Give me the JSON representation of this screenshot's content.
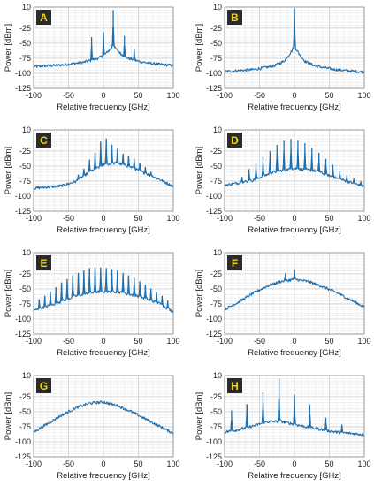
{
  "chart_data": [
    {
      "type": "line",
      "panel": "A",
      "title": "",
      "xlabel": "Relative frequency [GHz]",
      "ylabel": "Power  [dBm]",
      "xlim": [
        -100,
        100
      ],
      "ylim": [
        -125,
        10
      ],
      "xticks": [
        -100,
        -50,
        0,
        50,
        100
      ],
      "yticks": [
        10,
        -25,
        -50,
        -75,
        -100,
        -125
      ],
      "grid": true,
      "series_color": "#1f6fae",
      "floor": [
        [
          -100,
          -89
        ],
        [
          -60,
          -86
        ],
        [
          -30,
          -82
        ],
        [
          -10,
          -76
        ],
        [
          0,
          -71
        ],
        [
          8,
          -62
        ],
        [
          14,
          -55
        ],
        [
          20,
          -62
        ],
        [
          30,
          -73
        ],
        [
          50,
          -80
        ],
        [
          70,
          -84
        ],
        [
          100,
          -87
        ]
      ],
      "peaks": [
        [
          -17,
          -40
        ],
        [
          0,
          -32
        ],
        [
          14,
          5
        ],
        [
          30,
          -38
        ],
        [
          44,
          -60
        ]
      ]
    },
    {
      "type": "line",
      "panel": "B",
      "title": "",
      "xlabel": "Relative frequency [GHz]",
      "ylabel": "Power  [dBm]",
      "xlim": [
        -100,
        100
      ],
      "ylim": [
        -125,
        10
      ],
      "xticks": [
        -100,
        -50,
        0,
        50,
        100
      ],
      "yticks": [
        10,
        -25,
        -50,
        -75,
        -100,
        -125
      ],
      "grid": true,
      "series_color": "#1f6fae",
      "floor": [
        [
          -100,
          -97
        ],
        [
          -60,
          -94
        ],
        [
          -30,
          -88
        ],
        [
          -15,
          -80
        ],
        [
          -5,
          -65
        ],
        [
          0,
          -55
        ],
        [
          5,
          -65
        ],
        [
          15,
          -80
        ],
        [
          30,
          -88
        ],
        [
          60,
          -94
        ],
        [
          100,
          -98
        ]
      ],
      "peaks": [
        [
          0,
          8
        ]
      ]
    },
    {
      "type": "line",
      "panel": "C",
      "title": "",
      "xlabel": "Relative frequency [GHz]",
      "ylabel": "Power  [dBm]",
      "xlim": [
        -100,
        100
      ],
      "ylim": [
        -125,
        10
      ],
      "xticks": [
        -100,
        -50,
        0,
        50,
        100
      ],
      "yticks": [
        10,
        -25,
        -50,
        -75,
        -100,
        -125
      ],
      "grid": true,
      "series_color": "#1f6fae",
      "floor": [
        [
          -100,
          -87
        ],
        [
          -60,
          -83
        ],
        [
          -40,
          -76
        ],
        [
          -20,
          -60
        ],
        [
          0,
          -48
        ],
        [
          20,
          -45
        ],
        [
          40,
          -52
        ],
        [
          60,
          -62
        ],
        [
          80,
          -72
        ],
        [
          100,
          -84
        ]
      ],
      "peaks": [
        [
          -36,
          -65
        ],
        [
          -28,
          -55
        ],
        [
          -20,
          -40
        ],
        [
          -12,
          -28
        ],
        [
          -4,
          -10
        ],
        [
          4,
          -5
        ],
        [
          12,
          -15
        ],
        [
          20,
          -22
        ],
        [
          28,
          -30
        ],
        [
          36,
          -33
        ],
        [
          44,
          -38
        ],
        [
          52,
          -45
        ],
        [
          60,
          -52
        ],
        [
          68,
          -60
        ]
      ]
    },
    {
      "type": "line",
      "panel": "D",
      "title": "",
      "xlabel": "Relative frequency [GHz]",
      "ylabel": "Power  [dBm]",
      "xlim": [
        -100,
        100
      ],
      "ylim": [
        -125,
        10
      ],
      "xticks": [
        -100,
        -50,
        0,
        50,
        100
      ],
      "yticks": [
        10,
        -25,
        -50,
        -75,
        -100,
        -125
      ],
      "grid": true,
      "series_color": "#1f6fae",
      "floor": [
        [
          -100,
          -82
        ],
        [
          -60,
          -74
        ],
        [
          -30,
          -60
        ],
        [
          0,
          -54
        ],
        [
          30,
          -58
        ],
        [
          60,
          -70
        ],
        [
          100,
          -84
        ]
      ],
      "peaks": [
        [
          -75,
          -68
        ],
        [
          -65,
          -55
        ],
        [
          -55,
          -45
        ],
        [
          -45,
          -35
        ],
        [
          -35,
          -25
        ],
        [
          -25,
          -15
        ],
        [
          -15,
          -8
        ],
        [
          -5,
          -5
        ],
        [
          5,
          -8
        ],
        [
          15,
          -12
        ],
        [
          25,
          -20
        ],
        [
          35,
          -28
        ],
        [
          45,
          -38
        ],
        [
          55,
          -48
        ],
        [
          65,
          -58
        ],
        [
          75,
          -65
        ],
        [
          85,
          -70
        ],
        [
          95,
          -75
        ]
      ]
    },
    {
      "type": "line",
      "panel": "E",
      "title": "",
      "xlabel": "Relative frequency [GHz]",
      "ylabel": "Power  [dBm]",
      "xlim": [
        -100,
        100
      ],
      "ylim": [
        -125,
        10
      ],
      "xticks": [
        -100,
        -50,
        0,
        50,
        100
      ],
      "yticks": [
        10,
        -25,
        -50,
        -75,
        -100,
        -125
      ],
      "grid": true,
      "series_color": "#1f6fae",
      "floor": [
        [
          -100,
          -86
        ],
        [
          -70,
          -75
        ],
        [
          -40,
          -62
        ],
        [
          -10,
          -55
        ],
        [
          20,
          -55
        ],
        [
          50,
          -62
        ],
        [
          80,
          -74
        ],
        [
          100,
          -88
        ]
      ],
      "peaks": [
        [
          -92,
          -68
        ],
        [
          -84,
          -62
        ],
        [
          -76,
          -55
        ],
        [
          -68,
          -48
        ],
        [
          -60,
          -40
        ],
        [
          -52,
          -34
        ],
        [
          -44,
          -28
        ],
        [
          -36,
          -24
        ],
        [
          -28,
          -20
        ],
        [
          -20,
          -16
        ],
        [
          -12,
          -14
        ],
        [
          -4,
          -15
        ],
        [
          4,
          -16
        ],
        [
          12,
          -18
        ],
        [
          20,
          -20
        ],
        [
          28,
          -24
        ],
        [
          36,
          -28
        ],
        [
          44,
          -32
        ],
        [
          52,
          -38
        ],
        [
          60,
          -44
        ],
        [
          68,
          -50
        ],
        [
          76,
          -56
        ],
        [
          84,
          -62
        ],
        [
          92,
          -70
        ]
      ]
    },
    {
      "type": "line",
      "panel": "F",
      "title": "",
      "xlabel": "Relative frequency [GHz]",
      "ylabel": "Power  [dBm]",
      "xlim": [
        -100,
        100
      ],
      "ylim": [
        -125,
        10
      ],
      "xticks": [
        -100,
        -50,
        0,
        50,
        100
      ],
      "yticks": [
        10,
        -25,
        -50,
        -75,
        -100,
        -125
      ],
      "grid": true,
      "series_color": "#1f6fae",
      "floor": [
        [
          -100,
          -84
        ],
        [
          -80,
          -72
        ],
        [
          -60,
          -58
        ],
        [
          -40,
          -46
        ],
        [
          -20,
          -38
        ],
        [
          0,
          -34
        ],
        [
          20,
          -38
        ],
        [
          40,
          -46
        ],
        [
          60,
          -56
        ],
        [
          80,
          -68
        ],
        [
          100,
          -80
        ]
      ],
      "peaks": [
        [
          -13,
          -24
        ],
        [
          0,
          -18
        ]
      ]
    },
    {
      "type": "line",
      "panel": "G",
      "title": "",
      "xlabel": "Relative frequency [GHz]",
      "ylabel": "Power  [dBm]",
      "xlim": [
        -100,
        100
      ],
      "ylim": [
        -125,
        10
      ],
      "xticks": [
        -100,
        -50,
        0,
        50,
        100
      ],
      "yticks": [
        10,
        -25,
        -50,
        -75,
        -100,
        -125
      ],
      "grid": true,
      "series_color": "#1f6fae",
      "floor": [
        [
          -100,
          -84
        ],
        [
          -80,
          -70
        ],
        [
          -60,
          -56
        ],
        [
          -40,
          -44
        ],
        [
          -20,
          -36
        ],
        [
          0,
          -34
        ],
        [
          20,
          -40
        ],
        [
          40,
          -50
        ],
        [
          60,
          -62
        ],
        [
          80,
          -74
        ],
        [
          100,
          -86
        ]
      ],
      "peaks": []
    },
    {
      "type": "line",
      "panel": "H",
      "title": "",
      "xlabel": "Relative frequency [GHz]",
      "ylabel": "Power  [dBm]",
      "xlim": [
        -100,
        100
      ],
      "ylim": [
        -125,
        10
      ],
      "xticks": [
        -100,
        -50,
        0,
        50,
        100
      ],
      "yticks": [
        10,
        -25,
        -50,
        -75,
        -100,
        -125
      ],
      "grid": true,
      "series_color": "#1f6fae",
      "floor": [
        [
          -100,
          -84
        ],
        [
          -80,
          -80
        ],
        [
          -60,
          -74
        ],
        [
          -40,
          -67
        ],
        [
          -20,
          -66
        ],
        [
          0,
          -71
        ],
        [
          20,
          -76
        ],
        [
          40,
          -80
        ],
        [
          60,
          -84
        ],
        [
          80,
          -86
        ],
        [
          100,
          -88
        ]
      ],
      "peaks": [
        [
          -90,
          -48
        ],
        [
          -68,
          -38
        ],
        [
          -45,
          -18
        ],
        [
          -22,
          5
        ],
        [
          0,
          -22
        ],
        [
          22,
          -38
        ],
        [
          45,
          -60
        ],
        [
          68,
          -72
        ]
      ]
    }
  ]
}
